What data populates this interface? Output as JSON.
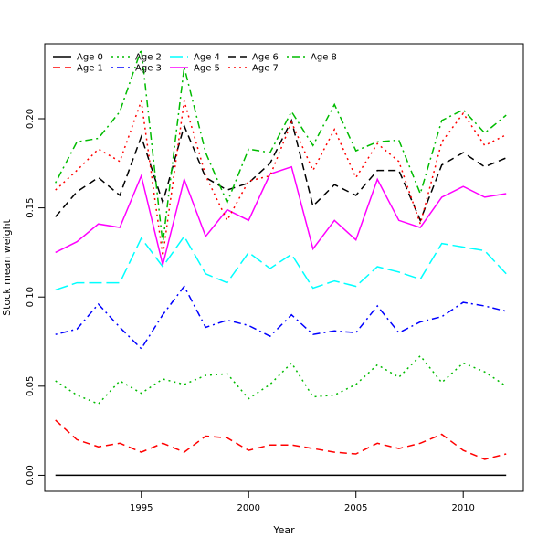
{
  "chart_data": {
    "type": "line",
    "title": "",
    "xlabel": "Year",
    "ylabel": "Stock mean weight",
    "xlim": [
      1990.5,
      2012.8
    ],
    "ylim": [
      -0.009,
      0.242
    ],
    "x_ticks": [
      1995,
      2000,
      2005,
      2010
    ],
    "y_ticks": [
      0.0,
      0.05,
      0.1,
      0.15,
      0.2
    ],
    "y_tick_labels": [
      "0.00",
      "0.05",
      "0.10",
      "0.15",
      "0.20"
    ],
    "grid": false,
    "legend_position": "top-left",
    "x": [
      1991,
      1992,
      1993,
      1994,
      1995,
      1996,
      1997,
      1998,
      1999,
      2000,
      2001,
      2002,
      2003,
      2004,
      2005,
      2006,
      2007,
      2008,
      2009,
      2010,
      2011,
      2012
    ],
    "series": [
      {
        "name": "Age 0",
        "color": "#000000",
        "dash": "solid",
        "values": [
          0.0,
          0.0,
          0.0,
          0.0,
          0.0,
          0.0,
          0.0,
          0.0,
          0.0,
          0.0,
          0.0,
          0.0,
          0.0,
          0.0,
          0.0,
          0.0,
          0.0,
          0.0,
          0.0,
          0.0,
          0.0,
          0.0
        ]
      },
      {
        "name": "Age 1",
        "color": "#ff0000",
        "dash": "dashed",
        "values": [
          0.031,
          0.02,
          0.016,
          0.018,
          0.013,
          0.018,
          0.013,
          0.022,
          0.021,
          0.014,
          0.017,
          0.017,
          0.015,
          0.013,
          0.012,
          0.018,
          0.015,
          0.018,
          0.023,
          0.014,
          0.009,
          0.012
        ]
      },
      {
        "name": "Age 2",
        "color": "#00bb00",
        "dash": "dotted",
        "values": [
          0.053,
          0.045,
          0.04,
          0.053,
          0.046,
          0.054,
          0.051,
          0.056,
          0.057,
          0.043,
          0.051,
          0.063,
          0.044,
          0.045,
          0.051,
          0.062,
          0.055,
          0.067,
          0.052,
          0.063,
          0.058,
          0.05
        ]
      },
      {
        "name": "Age 3",
        "color": "#0000ff",
        "dash": "dotdash",
        "values": [
          0.079,
          0.082,
          0.096,
          0.083,
          0.071,
          0.09,
          0.106,
          0.083,
          0.087,
          0.084,
          0.078,
          0.09,
          0.079,
          0.081,
          0.08,
          0.095,
          0.08,
          0.086,
          0.089,
          0.097,
          0.095,
          0.092
        ]
      },
      {
        "name": "Age 4",
        "color": "#00ffff",
        "dash": "longdash",
        "values": [
          0.104,
          0.108,
          0.108,
          0.108,
          0.133,
          0.117,
          0.134,
          0.113,
          0.108,
          0.125,
          0.116,
          0.124,
          0.105,
          0.109,
          0.106,
          0.117,
          0.114,
          0.11,
          0.13,
          0.128,
          0.126,
          0.113
        ]
      },
      {
        "name": "Age 5",
        "color": "#ff00ff",
        "dash": "solid",
        "values": [
          0.125,
          0.131,
          0.141,
          0.139,
          0.168,
          0.118,
          0.166,
          0.134,
          0.149,
          0.143,
          0.169,
          0.173,
          0.127,
          0.143,
          0.132,
          0.166,
          0.143,
          0.139,
          0.156,
          0.162,
          0.156,
          0.158
        ]
      },
      {
        "name": "Age 6",
        "color": "#000000",
        "dash": "dashed",
        "values": [
          0.145,
          0.159,
          0.167,
          0.157,
          0.19,
          0.153,
          0.196,
          0.167,
          0.16,
          0.164,
          0.175,
          0.199,
          0.151,
          0.163,
          0.157,
          0.171,
          0.171,
          0.143,
          0.174,
          0.181,
          0.173,
          0.178
        ]
      },
      {
        "name": "Age 7",
        "color": "#ff0000",
        "dash": "dotted",
        "values": [
          0.16,
          0.171,
          0.183,
          0.176,
          0.21,
          0.123,
          0.21,
          0.168,
          0.143,
          0.165,
          0.168,
          0.198,
          0.171,
          0.194,
          0.167,
          0.186,
          0.176,
          0.141,
          0.187,
          0.203,
          0.185,
          0.191
        ]
      },
      {
        "name": "Age 8",
        "color": "#00bb00",
        "dash": "dotdash",
        "values": [
          0.164,
          0.187,
          0.189,
          0.204,
          0.239,
          0.13,
          0.229,
          0.181,
          0.153,
          0.183,
          0.181,
          0.204,
          0.185,
          0.208,
          0.182,
          0.187,
          0.188,
          0.158,
          0.199,
          0.205,
          0.192,
          0.202
        ]
      }
    ]
  }
}
